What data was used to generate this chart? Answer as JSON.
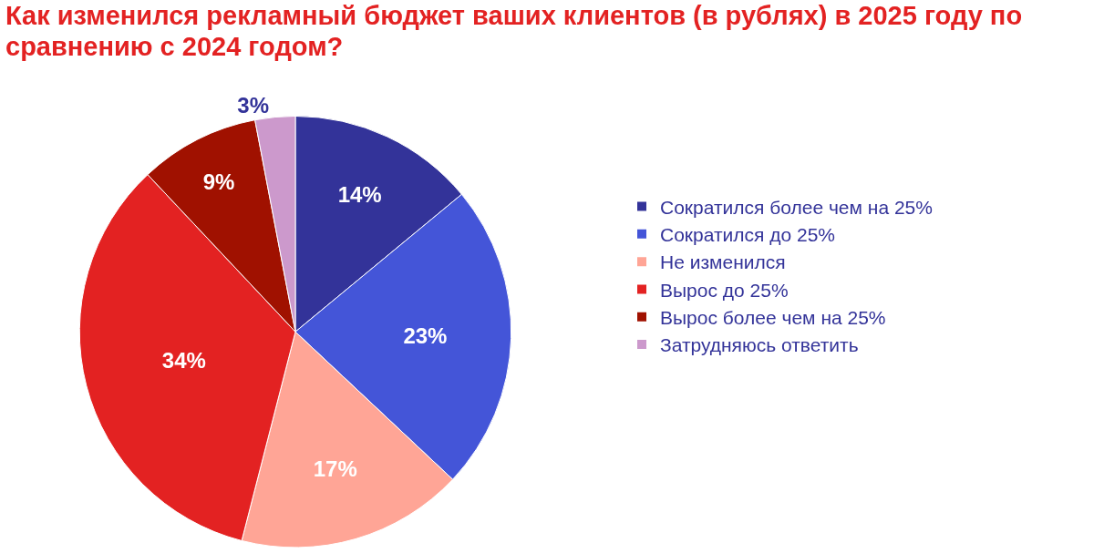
{
  "chart_data": {
    "type": "pie",
    "title": "Как изменился рекламный бюджет ваших клиентов (в рублях) в 2025 году по сравнению с 2024 годом?",
    "categories": [
      "Сократился более чем на 25%",
      "Сократился до 25%",
      "Не изменился",
      "Вырос до 25%",
      "Вырос более чем на 25%",
      "Затрудняюсь ответить"
    ],
    "values": [
      14,
      23,
      17,
      34,
      9,
      3
    ],
    "value_labels": [
      "14%",
      "23%",
      "17%",
      "34%",
      "9%",
      "3%"
    ],
    "colors": [
      "#333399",
      "#4455d8",
      "#ffa596",
      "#e32222",
      "#a01100",
      "#cc99cc"
    ],
    "legend": "right"
  }
}
